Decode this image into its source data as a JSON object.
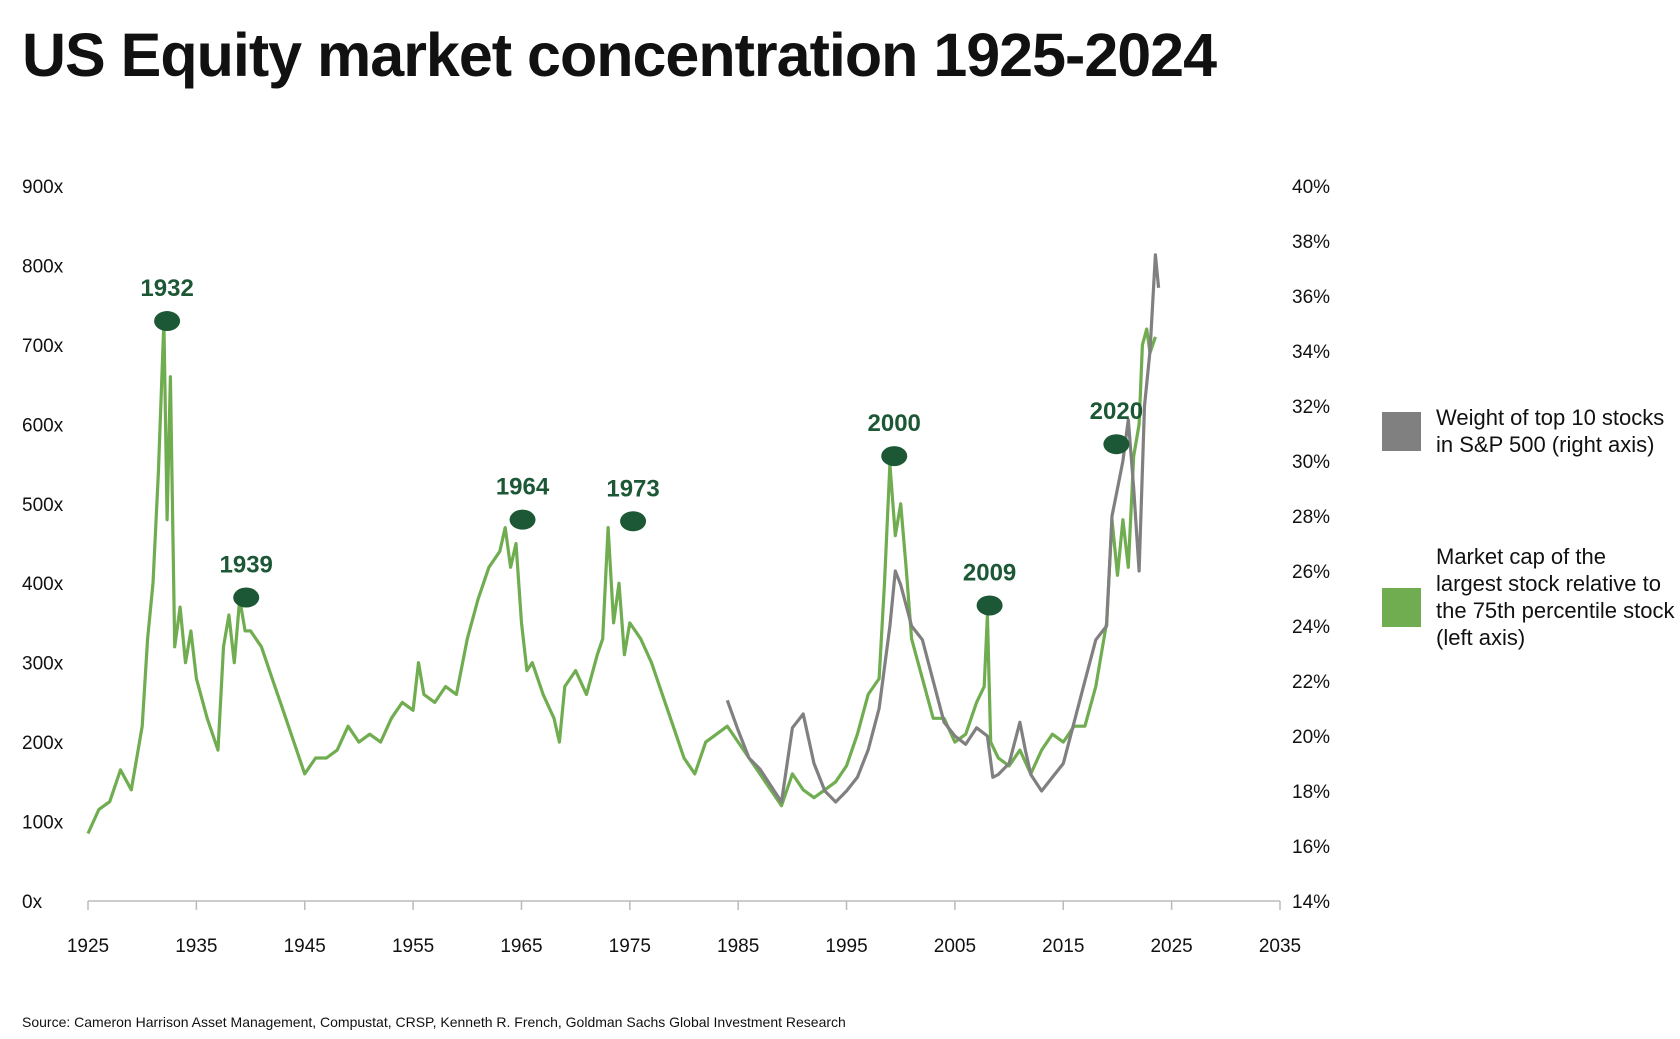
{
  "chart_data": {
    "type": "line",
    "title": "US Equity market concentration 1925-2024",
    "source": "Source: Cameron Harrison Asset Management, Compustat, CRSP, Kenneth R. French, Goldman Sachs Global Investment Research",
    "xlim": [
      1925,
      2035
    ],
    "x_ticks": [
      "1925",
      "1935",
      "1945",
      "1955",
      "1965",
      "1975",
      "1985",
      "1995",
      "2005",
      "2015",
      "2025",
      "2035"
    ],
    "left_axis": {
      "ylim": [
        0,
        900
      ],
      "ticks": [
        "0x",
        "100x",
        "200x",
        "300x",
        "400x",
        "500x",
        "600x",
        "700x",
        "800x",
        "900x"
      ]
    },
    "right_axis": {
      "ylim": [
        14,
        40
      ],
      "ticks": [
        "14%",
        "16%",
        "18%",
        "20%",
        "22%",
        "24%",
        "26%",
        "28%",
        "30%",
        "32%",
        "34%",
        "36%",
        "38%",
        "40%"
      ]
    },
    "series": [
      {
        "name": "Market cap of the largest stock relative to the 75th percentile stock (left axis)",
        "axis": "left",
        "color": "#70ad50",
        "points": [
          [
            1925,
            85
          ],
          [
            1926,
            115
          ],
          [
            1927,
            125
          ],
          [
            1928,
            165
          ],
          [
            1929,
            140
          ],
          [
            1930,
            220
          ],
          [
            1930.5,
            330
          ],
          [
            1931,
            400
          ],
          [
            1931.5,
            540
          ],
          [
            1932,
            730
          ],
          [
            1932.3,
            480
          ],
          [
            1932.6,
            660
          ],
          [
            1933,
            320
          ],
          [
            1933.5,
            370
          ],
          [
            1934,
            300
          ],
          [
            1934.5,
            340
          ],
          [
            1935,
            280
          ],
          [
            1936,
            230
          ],
          [
            1937,
            190
          ],
          [
            1937.5,
            320
          ],
          [
            1938,
            360
          ],
          [
            1938.5,
            300
          ],
          [
            1939,
            380
          ],
          [
            1939.5,
            340
          ],
          [
            1940,
            340
          ],
          [
            1941,
            320
          ],
          [
            1942,
            280
          ],
          [
            1943,
            240
          ],
          [
            1944,
            200
          ],
          [
            1945,
            160
          ],
          [
            1946,
            180
          ],
          [
            1947,
            180
          ],
          [
            1948,
            190
          ],
          [
            1949,
            220
          ],
          [
            1950,
            200
          ],
          [
            1951,
            210
          ],
          [
            1952,
            200
          ],
          [
            1953,
            230
          ],
          [
            1954,
            250
          ],
          [
            1955,
            240
          ],
          [
            1955.5,
            300
          ],
          [
            1956,
            260
          ],
          [
            1957,
            250
          ],
          [
            1958,
            270
          ],
          [
            1959,
            260
          ],
          [
            1960,
            330
          ],
          [
            1961,
            380
          ],
          [
            1962,
            420
          ],
          [
            1963,
            440
          ],
          [
            1963.5,
            470
          ],
          [
            1964,
            420
          ],
          [
            1964.5,
            450
          ],
          [
            1965,
            350
          ],
          [
            1965.5,
            290
          ],
          [
            1966,
            300
          ],
          [
            1967,
            260
          ],
          [
            1968,
            230
          ],
          [
            1968.5,
            200
          ],
          [
            1969,
            270
          ],
          [
            1970,
            290
          ],
          [
            1971,
            260
          ],
          [
            1972,
            310
          ],
          [
            1972.5,
            330
          ],
          [
            1973,
            470
          ],
          [
            1973.5,
            350
          ],
          [
            1974,
            400
          ],
          [
            1974.5,
            310
          ],
          [
            1975,
            350
          ],
          [
            1976,
            330
          ],
          [
            1977,
            300
          ],
          [
            1978,
            260
          ],
          [
            1979,
            220
          ],
          [
            1980,
            180
          ],
          [
            1981,
            160
          ],
          [
            1982,
            200
          ],
          [
            1983,
            210
          ],
          [
            1984,
            220
          ],
          [
            1985,
            200
          ],
          [
            1986,
            180
          ],
          [
            1987,
            160
          ],
          [
            1988,
            140
          ],
          [
            1989,
            120
          ],
          [
            1990,
            160
          ],
          [
            1991,
            140
          ],
          [
            1992,
            130
          ],
          [
            1993,
            140
          ],
          [
            1994,
            150
          ],
          [
            1995,
            170
          ],
          [
            1996,
            210
          ],
          [
            1997,
            260
          ],
          [
            1998,
            280
          ],
          [
            1998.5,
            400
          ],
          [
            1999,
            550
          ],
          [
            1999.5,
            460
          ],
          [
            2000,
            500
          ],
          [
            2000.5,
            420
          ],
          [
            2001,
            330
          ],
          [
            2002,
            280
          ],
          [
            2003,
            230
          ],
          [
            2004,
            230
          ],
          [
            2005,
            200
          ],
          [
            2006,
            210
          ],
          [
            2007,
            250
          ],
          [
            2007.7,
            270
          ],
          [
            2008,
            360
          ],
          [
            2008.3,
            200
          ],
          [
            2009,
            180
          ],
          [
            2010,
            170
          ],
          [
            2011,
            190
          ],
          [
            2012,
            160
          ],
          [
            2013,
            190
          ],
          [
            2014,
            210
          ],
          [
            2015,
            200
          ],
          [
            2016,
            220
          ],
          [
            2017,
            220
          ],
          [
            2018,
            270
          ],
          [
            2019,
            350
          ],
          [
            2019.5,
            480
          ],
          [
            2020,
            410
          ],
          [
            2020.5,
            480
          ],
          [
            2021,
            420
          ],
          [
            2021.5,
            560
          ],
          [
            2022,
            600
          ],
          [
            2022.3,
            700
          ],
          [
            2022.7,
            720
          ],
          [
            2023,
            690
          ],
          [
            2023.5,
            710
          ]
        ]
      },
      {
        "name": "Weight of top 10 stocks in S&P 500 (right axis)",
        "axis": "right",
        "color": "#808080",
        "points": [
          [
            1984,
            21.3
          ],
          [
            1985,
            20.2
          ],
          [
            1986,
            19.2
          ],
          [
            1987,
            18.8
          ],
          [
            1988,
            18.2
          ],
          [
            1989,
            17.6
          ],
          [
            1990,
            20.3
          ],
          [
            1991,
            20.8
          ],
          [
            1992,
            19.0
          ],
          [
            1993,
            18.0
          ],
          [
            1994,
            17.6
          ],
          [
            1995,
            18.0
          ],
          [
            1996,
            18.5
          ],
          [
            1997,
            19.5
          ],
          [
            1998,
            21
          ],
          [
            1999,
            24
          ],
          [
            1999.5,
            26
          ],
          [
            2000,
            25.5
          ],
          [
            2001,
            24
          ],
          [
            2002,
            23.5
          ],
          [
            2003,
            22
          ],
          [
            2004,
            20.5
          ],
          [
            2005,
            20
          ],
          [
            2006,
            19.7
          ],
          [
            2007,
            20.3
          ],
          [
            2008,
            20
          ],
          [
            2008.5,
            18.5
          ],
          [
            2009,
            18.6
          ],
          [
            2010,
            19
          ],
          [
            2011,
            20.5
          ],
          [
            2011.5,
            19.5
          ],
          [
            2012,
            18.6
          ],
          [
            2013,
            18.0
          ],
          [
            2014,
            18.5
          ],
          [
            2015,
            19.0
          ],
          [
            2016,
            20.5
          ],
          [
            2017,
            22
          ],
          [
            2018,
            23.5
          ],
          [
            2019,
            24
          ],
          [
            2019.5,
            28
          ],
          [
            2020,
            29
          ],
          [
            2020.5,
            30
          ],
          [
            2021,
            31.5
          ],
          [
            2021.5,
            29
          ],
          [
            2022,
            26
          ],
          [
            2022.5,
            32
          ],
          [
            2023,
            34
          ],
          [
            2023.5,
            37.5
          ],
          [
            2023.8,
            36.3
          ]
        ]
      }
    ],
    "legend": [
      {
        "label": "Weight of top 10 stocks in S&P 500 (right axis)",
        "color": "#808080"
      },
      {
        "label": "Market cap of the largest stock relative to the 75th percentile stock (left axis)",
        "color": "#70ad50"
      }
    ],
    "legend_position": "right",
    "annotations": [
      {
        "label": "1932",
        "x": 1932.3,
        "y": 730
      },
      {
        "label": "1939",
        "x": 1939.6,
        "y": 382
      },
      {
        "label": "1964",
        "x": 1965.1,
        "y": 480
      },
      {
        "label": "1973",
        "x": 1975.3,
        "y": 478
      },
      {
        "label": "2000",
        "x": 1999.4,
        "y": 560
      },
      {
        "label": "2009",
        "x": 2008.2,
        "y": 372
      },
      {
        "label": "2020",
        "x": 2019.9,
        "y": 575
      }
    ],
    "annotation_color": "#1d5836"
  }
}
